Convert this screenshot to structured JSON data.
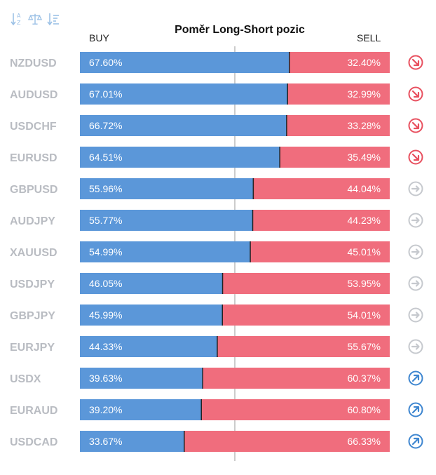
{
  "toolbar": {
    "icons": [
      "sort-alpha-icon",
      "balance-scale-icon",
      "sort-amount-icon"
    ],
    "color": "#9cc1e6"
  },
  "colors": {
    "buy": "#5b97d9",
    "sell": "#f06d7d",
    "label": "#b9bcc2",
    "trend_down": "#e8505f",
    "trend_neutral": "#c6c9ce",
    "trend_up": "#3e86d0"
  },
  "chart_data": {
    "type": "bar",
    "title": "Poměr Long-Short pozic",
    "buy_label": "BUY",
    "sell_label": "SELL",
    "value_unit": "%",
    "ylim": [
      0,
      100
    ],
    "categories": [
      "NZDUSD",
      "AUDUSD",
      "USDCHF",
      "EURUSD",
      "GBPUSD",
      "AUDJPY",
      "XAUUSD",
      "USDJPY",
      "GBPJPY",
      "EURJPY",
      "USDX",
      "EURAUD",
      "USDCAD"
    ],
    "series": [
      {
        "name": "BUY",
        "values": [
          67.6,
          67.01,
          66.72,
          64.51,
          55.96,
          55.77,
          54.99,
          46.05,
          45.99,
          44.33,
          39.63,
          39.2,
          33.67
        ]
      },
      {
        "name": "SELL",
        "values": [
          32.4,
          32.99,
          33.28,
          35.49,
          44.04,
          44.23,
          45.01,
          53.95,
          54.01,
          55.67,
          60.37,
          60.8,
          66.33
        ]
      }
    ],
    "buy_labels": [
      "67.60%",
      "67.01%",
      "66.72%",
      "64.51%",
      "55.96%",
      "55.77%",
      "54.99%",
      "46.05%",
      "45.99%",
      "44.33%",
      "39.63%",
      "39.20%",
      "33.67%"
    ],
    "sell_labels": [
      "32.40%",
      "32.99%",
      "33.28%",
      "35.49%",
      "44.04%",
      "44.23%",
      "45.01%",
      "53.95%",
      "54.01%",
      "55.67%",
      "60.37%",
      "60.80%",
      "66.33%"
    ],
    "trend": [
      "down",
      "down",
      "down",
      "down",
      "neutral",
      "neutral",
      "neutral",
      "neutral",
      "neutral",
      "neutral",
      "up",
      "up",
      "up"
    ]
  }
}
